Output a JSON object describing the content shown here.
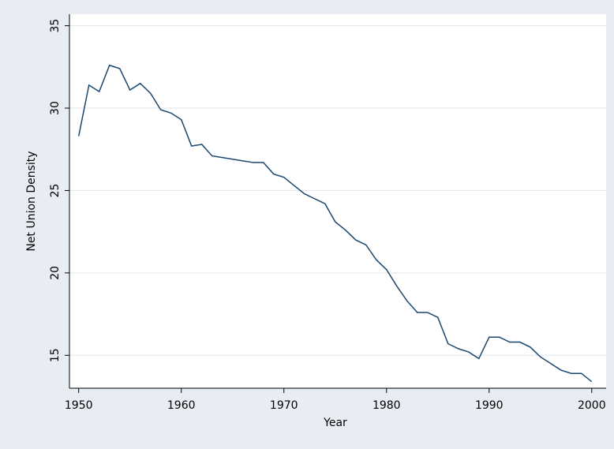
{
  "chart_data": {
    "type": "line",
    "x_label": "Year",
    "y_label": "Net Union Density",
    "x": [
      1950,
      1951,
      1952,
      1953,
      1954,
      1955,
      1956,
      1957,
      1958,
      1959,
      1960,
      1961,
      1962,
      1963,
      1964,
      1965,
      1966,
      1967,
      1968,
      1969,
      1970,
      1971,
      1972,
      1973,
      1974,
      1975,
      1976,
      1977,
      1978,
      1979,
      1980,
      1981,
      1982,
      1983,
      1984,
      1985,
      1986,
      1987,
      1988,
      1989,
      1990,
      1991,
      1992,
      1993,
      1994,
      1995,
      1996,
      1997,
      1998,
      1999,
      2000
    ],
    "series": [
      {
        "color": "#1a476f",
        "values": [
          28.3,
          31.4,
          31.0,
          32.6,
          32.4,
          31.1,
          31.5,
          30.9,
          29.9,
          29.7,
          29.3,
          27.7,
          27.8,
          27.1,
          27.0,
          26.9,
          26.8,
          26.7,
          26.7,
          26.0,
          25.8,
          25.3,
          24.8,
          24.5,
          24.2,
          23.1,
          22.6,
          22.0,
          21.7,
          20.8,
          20.2,
          19.2,
          18.3,
          17.6,
          17.6,
          17.3,
          15.7,
          15.4,
          15.2,
          14.8,
          16.1,
          16.1,
          15.8,
          15.8,
          15.5,
          14.9,
          14.5,
          14.1,
          13.9,
          13.9,
          13.4
        ]
      }
    ],
    "xlim": [
      1949.1,
      2001.4
    ],
    "ylim": [
      13.0,
      35.7
    ],
    "xticks": [
      1950,
      1960,
      1970,
      1980,
      1990,
      2000
    ],
    "yticks": [
      15,
      20,
      25,
      30,
      35
    ],
    "grid": true
  }
}
